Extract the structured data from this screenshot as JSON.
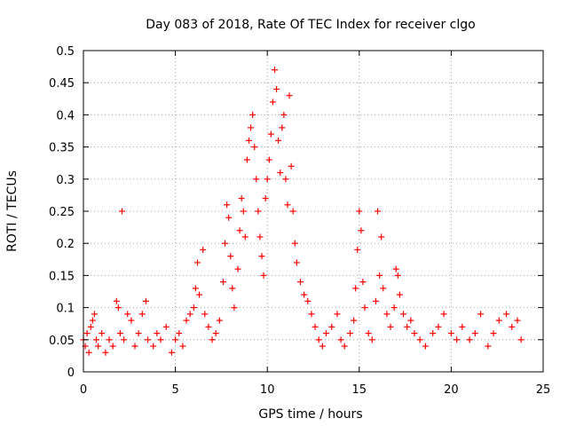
{
  "chart_data": {
    "type": "scatter",
    "title": "Day 083 of 2018, Rate Of TEC Index for receiver clgo",
    "xlabel": "GPS time / hours",
    "ylabel": "ROTI / TECUs",
    "xlim": [
      0,
      25
    ],
    "ylim": [
      0,
      0.5
    ],
    "xticks": [
      0,
      5,
      10,
      15,
      20,
      25
    ],
    "yticks": [
      0,
      0.05,
      0.1,
      0.15,
      0.2,
      0.25,
      0.3,
      0.35,
      0.4,
      0.45,
      0.5
    ],
    "grid": true,
    "marker": "+",
    "color": "#ff0000",
    "series": [
      {
        "name": "ROTI",
        "points": [
          [
            0.0,
            0.05
          ],
          [
            0.1,
            0.04
          ],
          [
            0.2,
            0.06
          ],
          [
            0.3,
            0.03
          ],
          [
            0.4,
            0.07
          ],
          [
            0.5,
            0.08
          ],
          [
            0.6,
            0.09
          ],
          [
            0.7,
            0.05
          ],
          [
            0.8,
            0.04
          ],
          [
            1.0,
            0.06
          ],
          [
            1.2,
            0.03
          ],
          [
            1.4,
            0.05
          ],
          [
            1.6,
            0.04
          ],
          [
            1.8,
            0.11
          ],
          [
            1.9,
            0.1
          ],
          [
            2.0,
            0.06
          ],
          [
            2.1,
            0.25
          ],
          [
            2.2,
            0.05
          ],
          [
            2.4,
            0.09
          ],
          [
            2.6,
            0.08
          ],
          [
            2.8,
            0.04
          ],
          [
            3.0,
            0.06
          ],
          [
            3.2,
            0.09
          ],
          [
            3.4,
            0.11
          ],
          [
            3.5,
            0.05
          ],
          [
            3.8,
            0.04
          ],
          [
            4.0,
            0.06
          ],
          [
            4.2,
            0.05
          ],
          [
            4.5,
            0.07
          ],
          [
            4.8,
            0.03
          ],
          [
            5.0,
            0.05
          ],
          [
            5.2,
            0.06
          ],
          [
            5.4,
            0.04
          ],
          [
            5.6,
            0.08
          ],
          [
            5.8,
            0.09
          ],
          [
            6.0,
            0.1
          ],
          [
            6.1,
            0.13
          ],
          [
            6.2,
            0.17
          ],
          [
            6.3,
            0.12
          ],
          [
            6.5,
            0.19
          ],
          [
            6.6,
            0.09
          ],
          [
            6.8,
            0.07
          ],
          [
            7.0,
            0.05
          ],
          [
            7.2,
            0.06
          ],
          [
            7.4,
            0.08
          ],
          [
            7.6,
            0.14
          ],
          [
            7.7,
            0.2
          ],
          [
            7.8,
            0.26
          ],
          [
            7.9,
            0.24
          ],
          [
            8.0,
            0.18
          ],
          [
            8.1,
            0.13
          ],
          [
            8.2,
            0.1
          ],
          [
            8.4,
            0.16
          ],
          [
            8.5,
            0.22
          ],
          [
            8.6,
            0.27
          ],
          [
            8.7,
            0.25
          ],
          [
            8.8,
            0.21
          ],
          [
            8.9,
            0.33
          ],
          [
            9.0,
            0.36
          ],
          [
            9.1,
            0.38
          ],
          [
            9.2,
            0.4
          ],
          [
            9.3,
            0.35
          ],
          [
            9.4,
            0.3
          ],
          [
            9.5,
            0.25
          ],
          [
            9.6,
            0.21
          ],
          [
            9.7,
            0.18
          ],
          [
            9.8,
            0.15
          ],
          [
            9.9,
            0.27
          ],
          [
            10.0,
            0.3
          ],
          [
            10.1,
            0.33
          ],
          [
            10.2,
            0.37
          ],
          [
            10.3,
            0.42
          ],
          [
            10.4,
            0.47
          ],
          [
            10.5,
            0.44
          ],
          [
            10.6,
            0.36
          ],
          [
            10.7,
            0.31
          ],
          [
            10.8,
            0.38
          ],
          [
            10.9,
            0.4
          ],
          [
            11.0,
            0.3
          ],
          [
            11.1,
            0.26
          ],
          [
            11.2,
            0.43
          ],
          [
            11.3,
            0.32
          ],
          [
            11.4,
            0.25
          ],
          [
            11.5,
            0.2
          ],
          [
            11.6,
            0.17
          ],
          [
            11.8,
            0.14
          ],
          [
            12.0,
            0.12
          ],
          [
            12.2,
            0.11
          ],
          [
            12.4,
            0.09
          ],
          [
            12.6,
            0.07
          ],
          [
            12.8,
            0.05
          ],
          [
            13.0,
            0.04
          ],
          [
            13.2,
            0.06
          ],
          [
            13.5,
            0.07
          ],
          [
            13.8,
            0.09
          ],
          [
            14.0,
            0.05
          ],
          [
            14.2,
            0.04
          ],
          [
            14.5,
            0.06
          ],
          [
            14.7,
            0.08
          ],
          [
            14.8,
            0.13
          ],
          [
            14.9,
            0.19
          ],
          [
            15.0,
            0.25
          ],
          [
            15.1,
            0.22
          ],
          [
            15.2,
            0.14
          ],
          [
            15.3,
            0.1
          ],
          [
            15.5,
            0.06
          ],
          [
            15.7,
            0.05
          ],
          [
            15.9,
            0.11
          ],
          [
            16.0,
            0.25
          ],
          [
            16.1,
            0.15
          ],
          [
            16.2,
            0.21
          ],
          [
            16.3,
            0.13
          ],
          [
            16.5,
            0.09
          ],
          [
            16.7,
            0.07
          ],
          [
            16.9,
            0.1
          ],
          [
            17.0,
            0.16
          ],
          [
            17.1,
            0.15
          ],
          [
            17.2,
            0.12
          ],
          [
            17.4,
            0.09
          ],
          [
            17.6,
            0.07
          ],
          [
            17.8,
            0.08
          ],
          [
            18.0,
            0.06
          ],
          [
            18.3,
            0.05
          ],
          [
            18.6,
            0.04
          ],
          [
            19.0,
            0.06
          ],
          [
            19.3,
            0.07
          ],
          [
            19.6,
            0.09
          ],
          [
            20.0,
            0.06
          ],
          [
            20.3,
            0.05
          ],
          [
            20.6,
            0.07
          ],
          [
            21.0,
            0.05
          ],
          [
            21.3,
            0.06
          ],
          [
            21.6,
            0.09
          ],
          [
            22.0,
            0.04
          ],
          [
            22.3,
            0.06
          ],
          [
            22.6,
            0.08
          ],
          [
            23.0,
            0.09
          ],
          [
            23.3,
            0.07
          ],
          [
            23.6,
            0.08
          ],
          [
            23.8,
            0.05
          ]
        ]
      }
    ]
  }
}
